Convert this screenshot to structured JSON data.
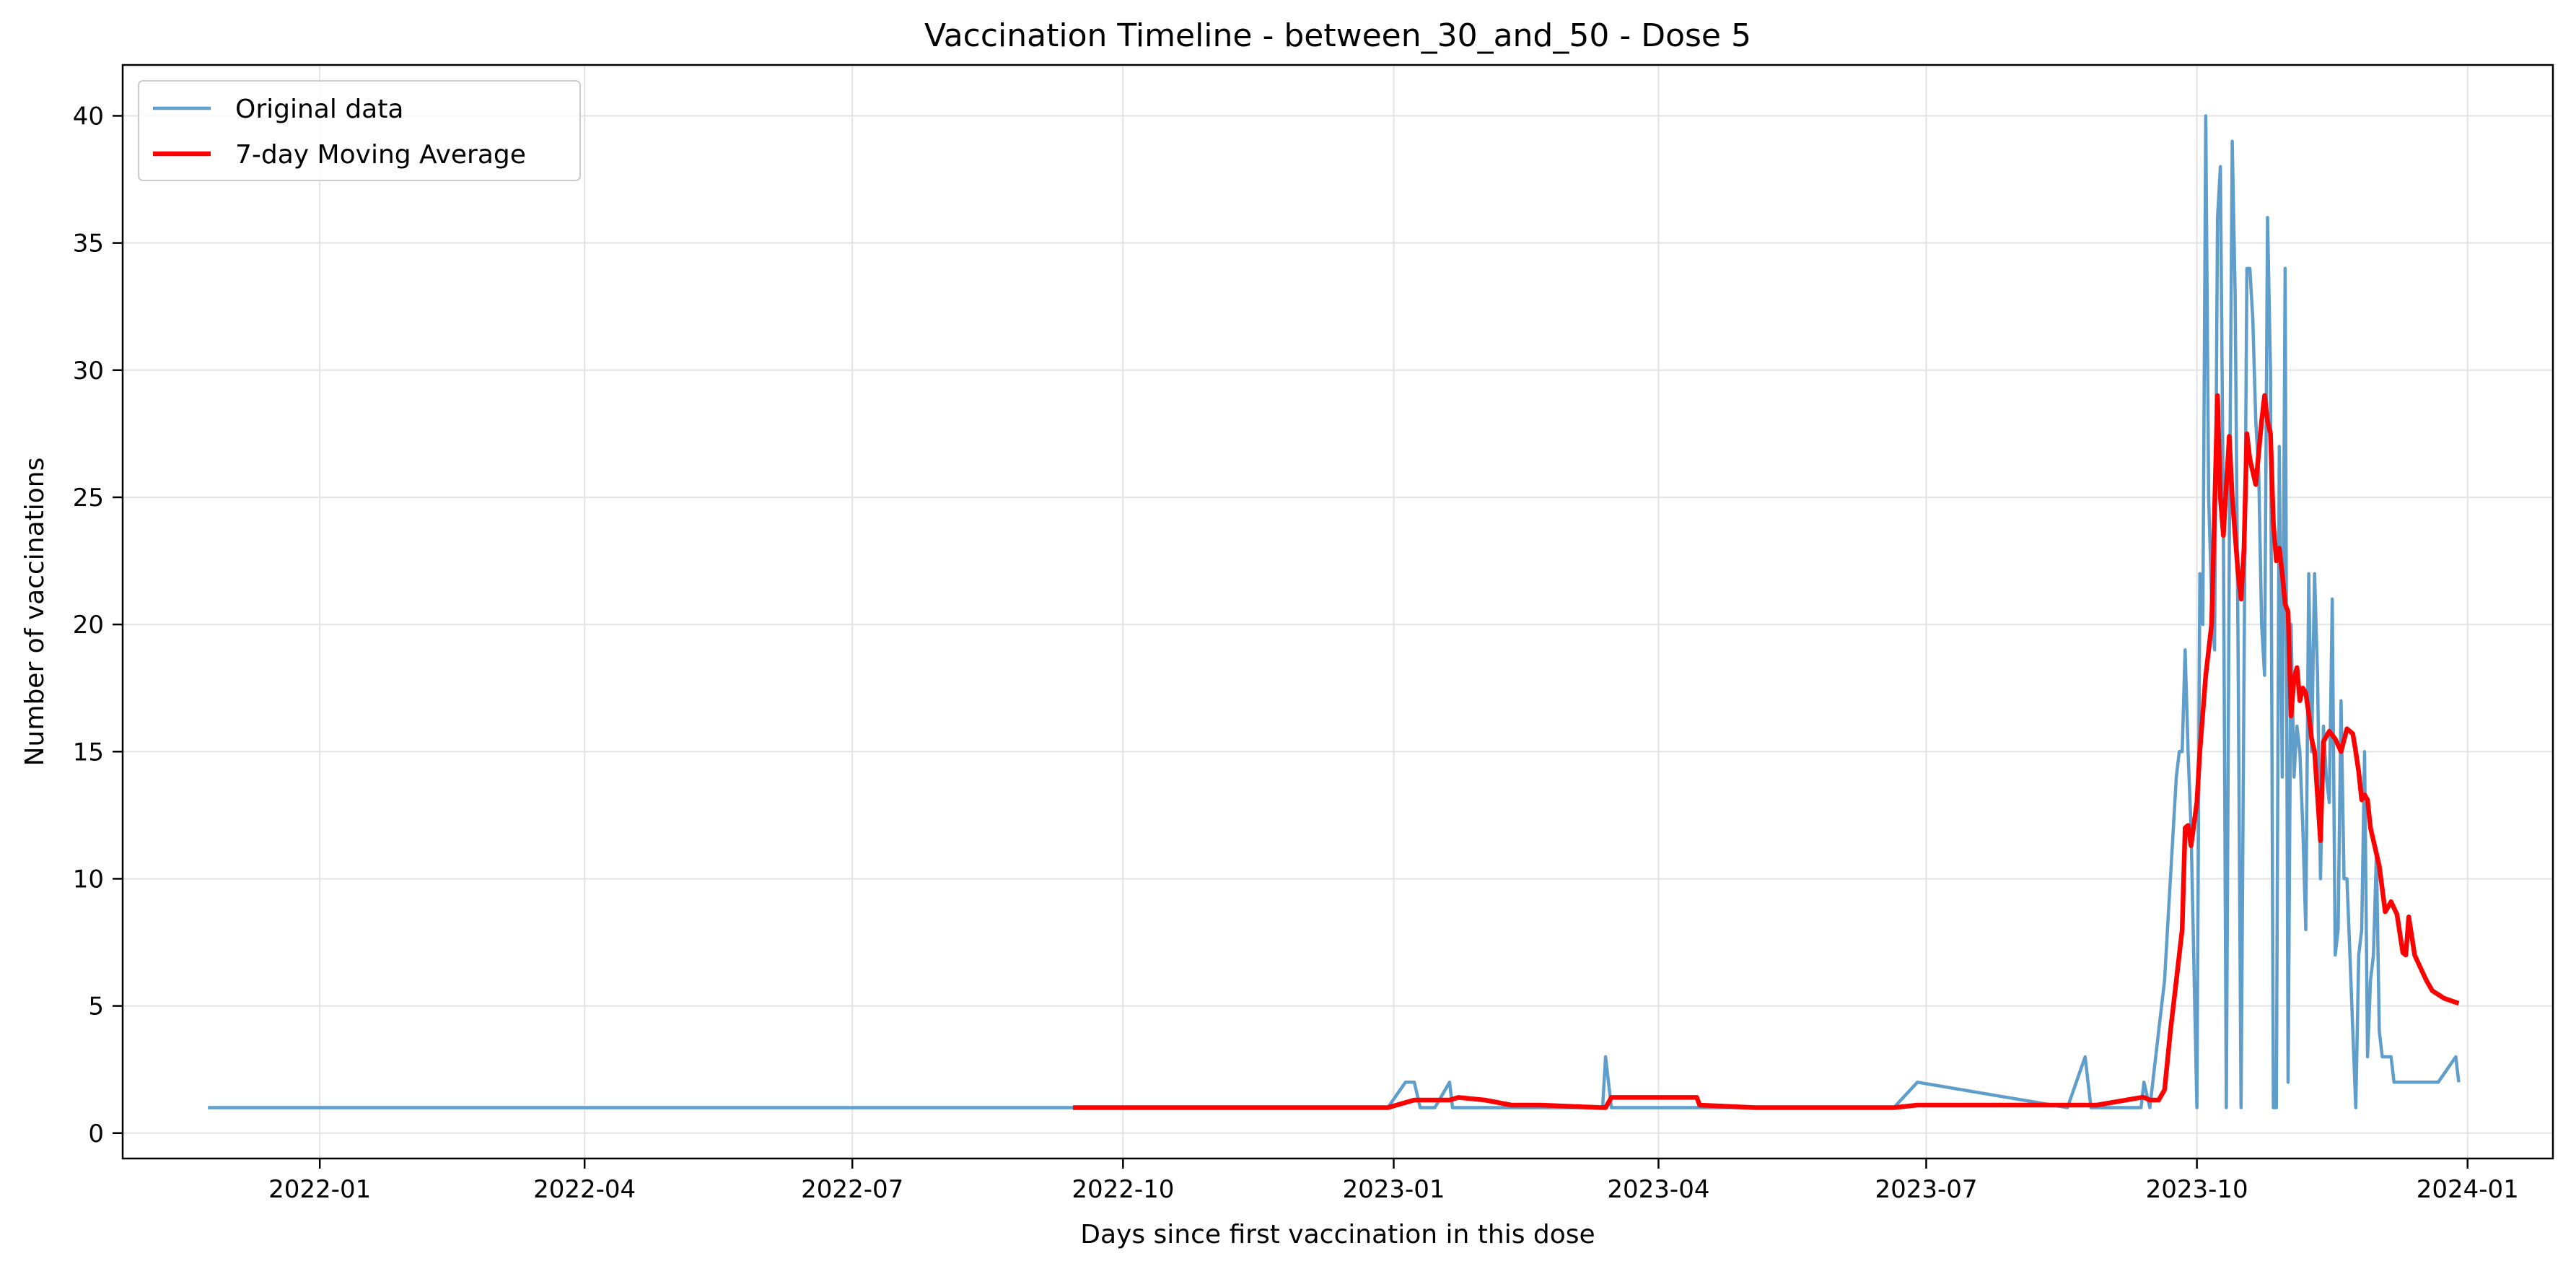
{
  "chart_data": {
    "type": "line",
    "title": "Vaccination Timeline - between_30_and_50 - Dose 5",
    "xlabel": "Days since first vaccination in this dose",
    "ylabel": "Number of vaccinations",
    "xlim": [
      "2021-10-26",
      "2024-01-30"
    ],
    "ylim": [
      -1,
      42
    ],
    "x_ticks": [
      "2022-01-01",
      "2022-04-01",
      "2022-07-01",
      "2022-10-01",
      "2023-01-01",
      "2023-04-01",
      "2023-07-01",
      "2023-10-01",
      "2024-01-01"
    ],
    "x_tick_labels": [
      "2022-01",
      "2022-04",
      "2022-07",
      "2022-10",
      "2023-01",
      "2023-04",
      "2023-07",
      "2023-10",
      "2024-01"
    ],
    "y_ticks": [
      0,
      5,
      10,
      15,
      20,
      25,
      30,
      35,
      40
    ],
    "grid": true,
    "legend_position": "top-left",
    "series": [
      {
        "name": "Original data",
        "color": "#5f9ecb",
        "x": [
          "2021-11-24",
          "2022-09-14",
          "2022-12-30",
          "2023-01-05",
          "2023-01-08",
          "2023-01-10",
          "2023-01-13",
          "2023-01-15",
          "2023-01-20",
          "2023-01-21",
          "2023-01-23",
          "2023-01-26",
          "2023-02-10",
          "2023-03-13",
          "2023-03-14",
          "2023-03-16",
          "2023-03-20",
          "2023-04-14",
          "2023-06-20",
          "2023-06-28",
          "2023-08-18",
          "2023-08-24",
          "2023-08-26",
          "2023-08-28",
          "2023-09-12",
          "2023-09-13",
          "2023-09-15",
          "2023-09-18",
          "2023-09-20",
          "2023-09-21",
          "2023-09-24",
          "2023-09-25",
          "2023-09-26",
          "2023-09-27",
          "2023-09-28",
          "2023-09-29",
          "2023-10-01",
          "2023-10-02",
          "2023-10-03",
          "2023-10-04",
          "2023-10-05",
          "2023-10-06",
          "2023-10-07",
          "2023-10-08",
          "2023-10-09",
          "2023-10-10",
          "2023-10-11",
          "2023-10-12",
          "2023-10-13",
          "2023-10-14",
          "2023-10-15",
          "2023-10-16",
          "2023-10-17",
          "2023-10-18",
          "2023-10-19",
          "2023-10-20",
          "2023-10-21",
          "2023-10-22",
          "2023-10-23",
          "2023-10-24",
          "2023-10-25",
          "2023-10-26",
          "2023-10-27",
          "2023-10-28",
          "2023-10-29",
          "2023-10-30",
          "2023-10-31",
          "2023-11-01",
          "2023-11-02",
          "2023-11-03",
          "2023-11-04",
          "2023-11-05",
          "2023-11-06",
          "2023-11-07",
          "2023-11-08",
          "2023-11-09",
          "2023-11-10",
          "2023-11-11",
          "2023-11-12",
          "2023-11-13",
          "2023-11-14",
          "2023-11-15",
          "2023-11-16",
          "2023-11-17",
          "2023-11-18",
          "2023-11-19",
          "2023-11-20",
          "2023-11-21",
          "2023-11-22",
          "2023-11-23",
          "2023-11-24",
          "2023-11-25",
          "2023-11-26",
          "2023-11-27",
          "2023-11-28",
          "2023-11-29",
          "2023-11-30",
          "2023-12-01",
          "2023-12-02",
          "2023-12-03",
          "2023-12-04",
          "2023-12-05",
          "2023-12-06",
          "2023-12-07",
          "2023-12-08",
          "2023-12-10",
          "2023-12-12",
          "2023-12-14",
          "2023-12-15",
          "2023-12-17",
          "2023-12-18",
          "2023-12-19",
          "2023-12-20",
          "2023-12-22",
          "2023-12-28",
          "2023-12-29"
        ],
        "y": [
          1,
          1,
          1,
          2,
          2,
          1,
          1,
          1,
          2,
          1,
          1,
          1,
          1,
          1,
          3,
          1,
          1,
          1,
          1,
          2,
          1,
          3,
          1,
          1,
          1,
          2,
          1,
          4,
          6,
          8,
          14,
          15,
          15,
          19,
          15,
          12,
          1,
          22,
          20,
          40,
          25,
          21,
          19,
          36,
          38,
          24,
          1,
          23,
          39,
          33,
          19,
          1,
          18,
          34,
          34,
          32,
          28,
          26,
          20,
          18,
          36,
          30,
          1,
          1,
          27,
          14,
          34,
          2,
          20,
          14,
          16,
          15,
          12,
          8,
          22,
          15,
          22,
          18,
          10,
          16,
          14,
          13,
          21,
          7,
          8,
          17,
          10,
          10,
          7,
          4,
          1,
          7,
          8,
          15,
          3,
          6,
          7,
          11,
          4,
          3,
          3,
          3,
          3,
          2,
          2,
          2,
          2,
          2,
          2,
          2,
          2,
          2,
          2,
          2,
          3,
          2
        ]
      },
      {
        "name": "7-day Moving Average",
        "color": "#ff0000",
        "x": [
          "2022-09-14",
          "2022-12-30",
          "2023-01-08",
          "2023-01-20",
          "2023-01-23",
          "2023-02-01",
          "2023-02-10",
          "2023-02-20",
          "2023-03-13",
          "2023-03-14",
          "2023-03-16",
          "2023-04-14",
          "2023-04-15",
          "2023-05-04",
          "2023-06-20",
          "2023-06-28",
          "2023-08-18",
          "2023-08-26",
          "2023-08-28",
          "2023-09-12",
          "2023-09-13",
          "2023-09-15",
          "2023-09-18",
          "2023-09-20",
          "2023-09-22",
          "2023-09-24",
          "2023-09-26",
          "2023-09-27",
          "2023-09-28",
          "2023-09-29",
          "2023-10-01",
          "2023-10-02",
          "2023-10-04",
          "2023-10-06",
          "2023-10-08",
          "2023-10-09",
          "2023-10-10",
          "2023-10-12",
          "2023-10-13",
          "2023-10-15",
          "2023-10-16",
          "2023-10-17",
          "2023-10-18",
          "2023-10-19",
          "2023-10-21",
          "2023-10-23",
          "2023-10-24",
          "2023-10-25",
          "2023-10-26",
          "2023-10-27",
          "2023-10-28",
          "2023-10-29",
          "2023-10-30",
          "2023-10-31",
          "2023-11-01",
          "2023-11-02",
          "2023-11-03",
          "2023-11-04",
          "2023-11-05",
          "2023-11-06",
          "2023-11-07",
          "2023-11-08",
          "2023-11-09",
          "2023-11-10",
          "2023-11-12",
          "2023-11-13",
          "2023-11-15",
          "2023-11-17",
          "2023-11-19",
          "2023-11-21",
          "2023-11-22",
          "2023-11-23",
          "2023-11-24",
          "2023-11-25",
          "2023-11-26",
          "2023-11-27",
          "2023-11-28",
          "2023-11-29",
          "2023-11-30",
          "2023-12-02",
          "2023-12-04",
          "2023-12-06",
          "2023-12-08",
          "2023-12-10",
          "2023-12-11",
          "2023-12-12",
          "2023-12-14",
          "2023-12-16",
          "2023-12-18",
          "2023-12-20",
          "2023-12-24",
          "2023-12-29"
        ],
        "y": [
          1,
          1,
          1.3,
          1.3,
          1.4,
          1.3,
          1.1,
          1.1,
          1,
          1,
          1.4,
          1.4,
          1.1,
          1,
          1,
          1.1,
          1.1,
          1.1,
          1.1,
          1.4,
          1.4,
          1.3,
          1.3,
          1.7,
          4,
          6,
          8,
          12,
          12.1,
          11.3,
          13,
          15,
          18,
          20,
          29,
          25,
          23.5,
          27.4,
          25,
          22,
          21,
          23,
          27.5,
          26.5,
          25.5,
          28,
          29,
          28,
          27.5,
          24,
          22.5,
          23,
          22,
          20.8,
          20.5,
          16.4,
          17.9,
          18.3,
          17,
          17.5,
          17.3,
          16.5,
          15.5,
          15,
          11.5,
          15.4,
          15.8,
          15.5,
          15,
          15.9,
          15.8,
          15.7,
          15,
          14.2,
          13.1,
          13.3,
          13.1,
          12,
          11.5,
          10.5,
          8.7,
          9.1,
          8.6,
          7.1,
          7,
          8.5,
          7,
          6.5,
          6,
          5.6,
          5.3,
          5.1
        ]
      }
    ]
  }
}
